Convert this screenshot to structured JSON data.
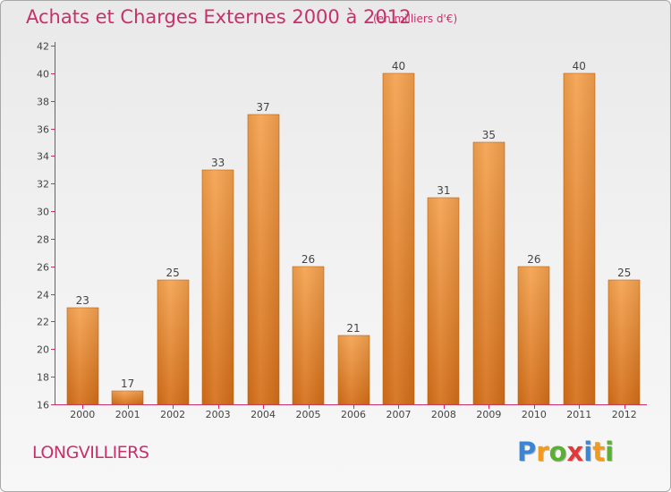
{
  "title": "Achats et Charges Externes 2000 à 2012",
  "subtitle": "(en milliers d'€)",
  "town": "LONGVILLIERS",
  "logo": "Proxiti",
  "colors": {
    "title": "#c9306b",
    "bar_top": "#f5a24f",
    "bar_bottom": "#d56f18",
    "axis": "#c9306b"
  },
  "chart_data": {
    "type": "bar",
    "categories": [
      "2000",
      "2001",
      "2002",
      "2003",
      "2004",
      "2005",
      "2006",
      "2007",
      "2008",
      "2009",
      "2010",
      "2011",
      "2012"
    ],
    "values": [
      23,
      17,
      25,
      33,
      37,
      26,
      21,
      40,
      31,
      35,
      26,
      40,
      25
    ],
    "ylim": [
      16,
      42
    ],
    "yticks": [
      16,
      18,
      20,
      22,
      24,
      26,
      28,
      30,
      32,
      34,
      36,
      38,
      40,
      42
    ],
    "grid": false,
    "legend": "none",
    "title": "Achats et Charges Externes 2000 à 2012",
    "xlabel": "",
    "ylabel": ""
  }
}
